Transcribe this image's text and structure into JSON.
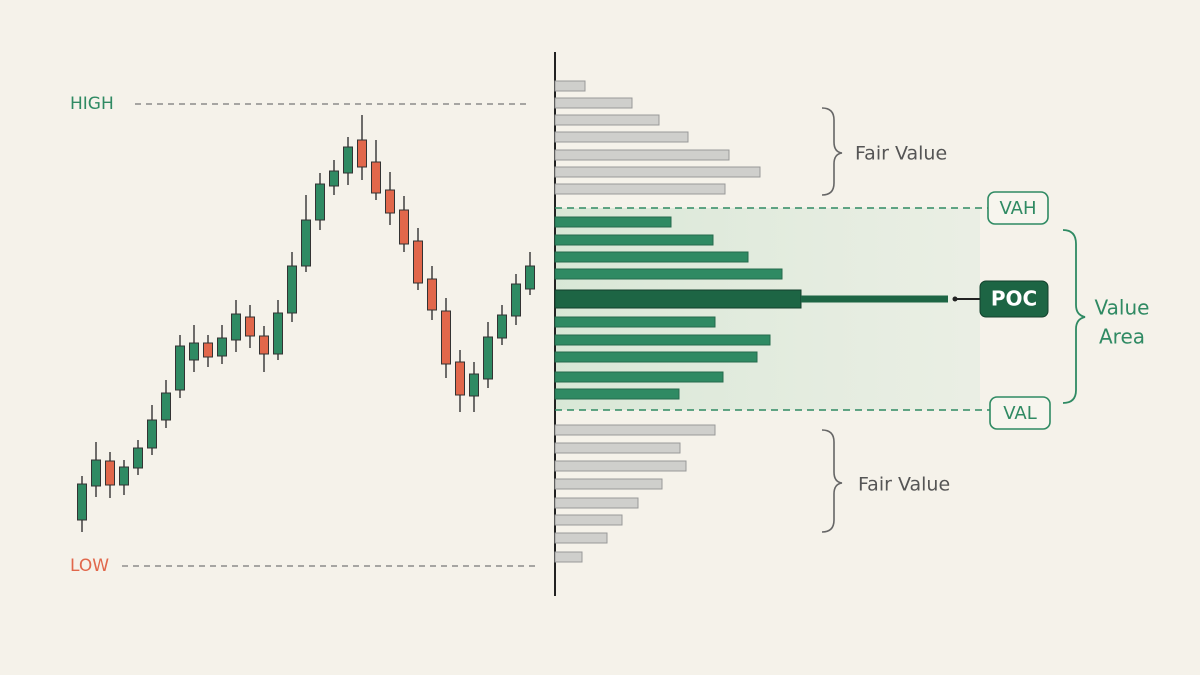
{
  "chart_data": {
    "type": "candlestick-profile",
    "high_label": "HIGH",
    "low_label": "LOW",
    "ylim": [
      0,
      620
    ],
    "up_color": "#2f8a63",
    "down_color": "#e1674b",
    "candles": {
      "open": [
        100,
        134,
        159,
        135,
        152,
        172,
        200,
        230,
        260,
        277,
        264,
        280,
        303,
        284,
        266,
        307,
        354,
        400,
        434,
        447,
        480,
        458,
        430,
        410,
        379,
        341,
        309,
        258,
        224,
        241,
        282,
        304,
        331
      ],
      "high": [
        144,
        178,
        168,
        160,
        180,
        215,
        240,
        285,
        295,
        285,
        295,
        320,
        315,
        294,
        320,
        368,
        425,
        447,
        460,
        483,
        505,
        480,
        448,
        424,
        392,
        354,
        322,
        270,
        258,
        298,
        315,
        346,
        368
      ],
      "low": [
        88,
        123,
        122,
        125,
        145,
        165,
        192,
        222,
        248,
        253,
        256,
        268,
        272,
        248,
        260,
        298,
        348,
        390,
        425,
        435,
        440,
        420,
        395,
        368,
        330,
        300,
        242,
        208,
        208,
        232,
        275,
        295,
        325
      ],
      "close": [
        136,
        160,
        135,
        153,
        172,
        200,
        227,
        274,
        277,
        263,
        282,
        306,
        284,
        266,
        307,
        354,
        400,
        436,
        449,
        473,
        453,
        427,
        407,
        376,
        337,
        310,
        256,
        225,
        246,
        283,
        305,
        336,
        354
      ]
    },
    "profile": {
      "levels": [
        534,
        517,
        500,
        483,
        465,
        448,
        431,
        398,
        380,
        363,
        346,
        321,
        298,
        280,
        263,
        243,
        226,
        190,
        172,
        154,
        136,
        117,
        100,
        82,
        63
      ],
      "volumes": [
        30,
        77,
        104,
        133,
        174,
        205,
        170,
        116,
        158,
        193,
        227,
        246,
        160,
        215,
        202,
        168,
        124,
        160,
        125,
        131,
        107,
        83,
        67,
        52,
        27
      ],
      "outside_color": "#cfcfcc",
      "value_area_color": "#2f8a63",
      "poc_color": "#1d6544"
    },
    "vah": 412,
    "val": 210,
    "vah_label": "VAH",
    "val_label": "VAL",
    "poc_label": "POC",
    "fair_value_upper": "Fair Value",
    "fair_value_lower": "Fair Value",
    "value_area_label": [
      "Value",
      "Area"
    ]
  }
}
